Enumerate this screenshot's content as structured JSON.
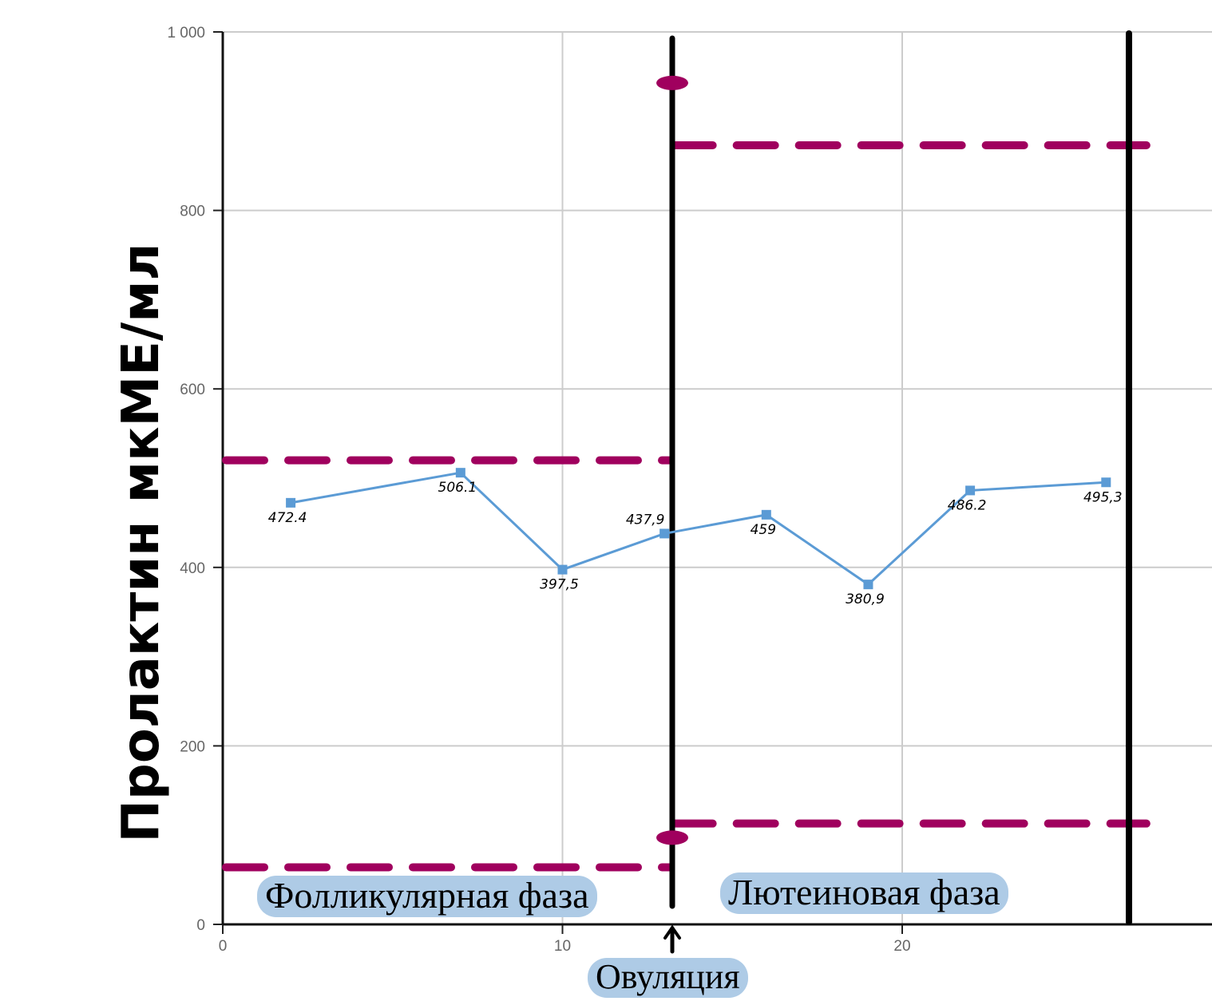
{
  "chart_data": {
    "type": "line",
    "title": "",
    "xlabel": "",
    "ylabel": "Пролактин мкМЕ/мл",
    "xlim": [
      0,
      29
    ],
    "ylim": [
      0,
      1000
    ],
    "x_ticks": [
      0,
      10,
      20
    ],
    "x_tick_labels": [
      "0",
      "10",
      "20"
    ],
    "y_ticks": [
      0,
      200,
      400,
      600,
      800,
      1000
    ],
    "y_tick_labels": [
      "0",
      "200",
      "400",
      "600",
      "800",
      "1 000"
    ],
    "grid": true,
    "series": [
      {
        "name": "Пролактин",
        "color": "#5b9bd5",
        "marker": "square",
        "x": [
          2,
          7,
          10,
          13,
          16,
          19,
          22,
          26
        ],
        "values": [
          472.4,
          506.1,
          397.5,
          437.9,
          459,
          380.9,
          486.2,
          495.3
        ],
        "labels": [
          "472.4",
          "506.1",
          "397,5",
          "437,9",
          "459",
          "380,9",
          "486.2",
          "495,3"
        ]
      }
    ],
    "reference_ranges": [
      {
        "phase": "Фолликулярная фаза",
        "x_from": 0,
        "x_to": 13,
        "low": 64,
        "high": 520,
        "color": "#a0005e"
      },
      {
        "phase": "Лютеиновая фаза",
        "x_from": 13.2,
        "x_to": 27,
        "low": 113,
        "high": 873,
        "color": "#a0005e"
      }
    ],
    "ovulation_marker": {
      "x": 13.2,
      "dot_values": [
        950,
        90
      ]
    },
    "cycle_end_marker": {
      "x": 26.6
    },
    "annotations": [
      {
        "text": "Фолликулярная фаза",
        "position": "bottom-left"
      },
      {
        "text": "Лютеиновая фаза",
        "position": "bottom-right"
      },
      {
        "text": "Овуляция",
        "position": "below-x-axis",
        "arrow": "up"
      }
    ]
  },
  "labels": {
    "ylabel": "Пролактин мкМЕ/мл",
    "follicular": "Фолликулярная фаза",
    "luteal": "Лютеиновая фаза",
    "ovulation": "Овуляция"
  },
  "colors": {
    "series": "#5b9bd5",
    "range": "#a0005e",
    "marker_line": "#000000",
    "grid": "#cccccc",
    "label_bg": "#aecbe6"
  }
}
